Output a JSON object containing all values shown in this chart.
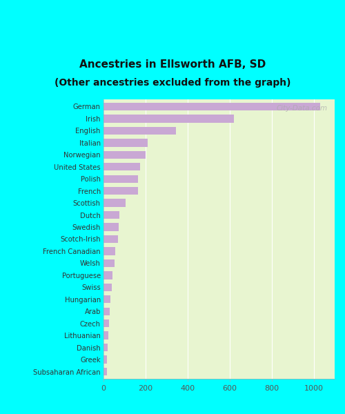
{
  "title_line1": "Ancestries in Ellsworth AFB, SD",
  "title_line2": "(Other ancestries excluded from the graph)",
  "categories": [
    "German",
    "Irish",
    "English",
    "Italian",
    "Norwegian",
    "United States",
    "Polish",
    "French",
    "Scottish",
    "Dutch",
    "Swedish",
    "Scotch-Irish",
    "French Canadian",
    "Welsh",
    "Portuguese",
    "Swiss",
    "Hungarian",
    "Arab",
    "Czech",
    "Lithuanian",
    "Danish",
    "Greek",
    "Subsaharan African"
  ],
  "values": [
    1030,
    620,
    345,
    210,
    200,
    175,
    165,
    165,
    105,
    75,
    72,
    68,
    55,
    52,
    42,
    40,
    32,
    28,
    26,
    22,
    20,
    18,
    16
  ],
  "bar_color": "#c9a8d4",
  "background_color": "#e8f5d0",
  "outer_background": "#00ffff",
  "xlabel_vals": [
    0,
    200,
    400,
    600,
    800,
    1000
  ],
  "xlim": [
    0,
    1100
  ],
  "watermark": "City-Data.com"
}
